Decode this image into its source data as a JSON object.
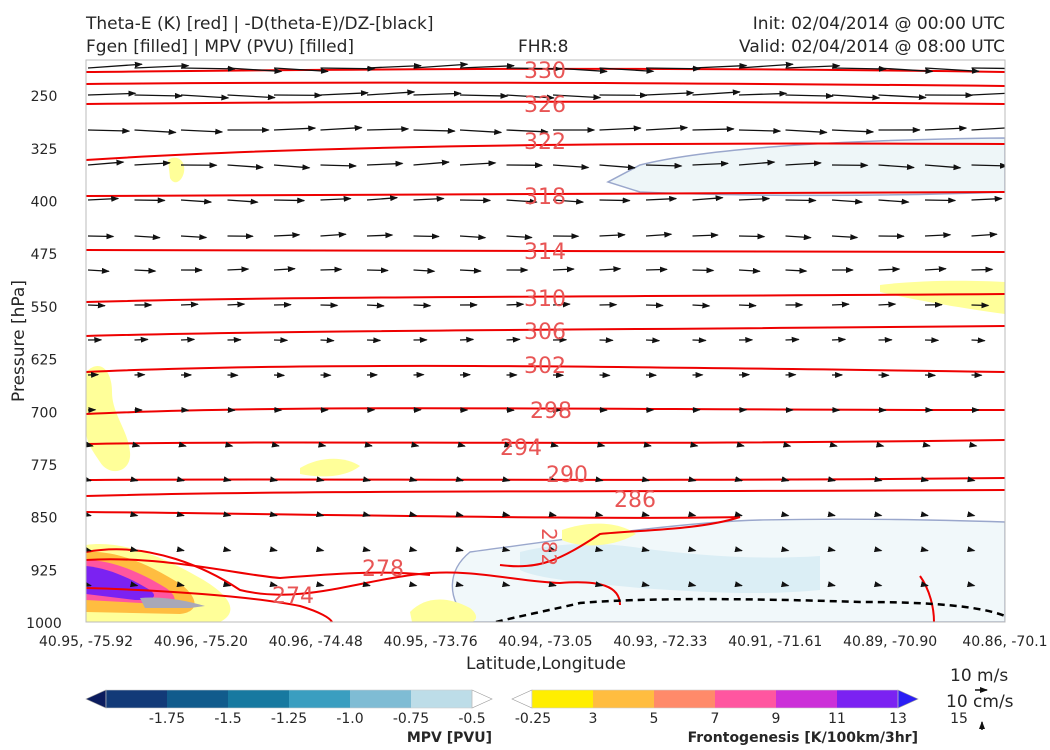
{
  "header": {
    "title_line1": "Theta-E (K) [red] | -D(theta-E)/DZ-[black]",
    "title_line2": "Fgen [filled] | MPV (PVU) [filled]",
    "fhr": "FHR:8",
    "init": "Init: 02/04/2014 @ 00:00 UTC",
    "valid": "Valid: 02/04/2014 @ 08:00 UTC"
  },
  "chart_data": {
    "type": "cross-section contour",
    "xlabel": "Latitude,Longitude",
    "ylabel": "Pressure [hPa]",
    "y_axis": {
      "ylim": [
        1000,
        200
      ],
      "ticks": [
        250,
        325,
        400,
        475,
        550,
        625,
        700,
        775,
        850,
        925,
        1000
      ]
    },
    "x_axis": {
      "ticks": [
        "40.95, -75.92",
        "40.96, -75.20",
        "40.96, -74.48",
        "40.95, -73.76",
        "40.94, -73.05",
        "40.93, -72.33",
        "40.91, -71.61",
        "40.89, -70.90",
        "40.86, -70.1"
      ]
    },
    "series": [
      {
        "name": "Theta-E (K)",
        "color": "#ee0000",
        "contour_labels": [
          "330",
          "326",
          "322",
          "318",
          "314",
          "310",
          "306",
          "302",
          "298",
          "294",
          "290",
          "286",
          "282",
          "278",
          "274"
        ]
      },
      {
        "name": "-D(theta-E)/DZ",
        "color": "#000000"
      },
      {
        "name": "Fgen",
        "style": "filled"
      },
      {
        "name": "MPV (PVU)",
        "style": "filled"
      }
    ],
    "wind_reference": {
      "horizontal": "10 m/s",
      "vertical": "10 cm/s"
    },
    "colorbars": [
      {
        "label": "MPV [PVU]",
        "ticks": [
          "-1.75",
          "-1.5",
          "-1.25",
          "-1.0",
          "-0.75",
          "-0.5",
          "-0.25"
        ],
        "colors": [
          "#0b1c5e",
          "#123a78",
          "#115b8c",
          "#1779a0",
          "#3a9ec0",
          "#7fbcd4",
          "#bddde8",
          "#ffffff"
        ]
      },
      {
        "label": "Frontogenesis [K/100km/3hr]",
        "ticks": [
          "3",
          "5",
          "7",
          "9",
          "11",
          "13",
          "15"
        ],
        "colors": [
          "#ffffff",
          "#ffee00",
          "#ffbd40",
          "#ff8a6a",
          "#ff56a0",
          "#cc30d8",
          "#7b22f2",
          "#2b1ef5"
        ]
      }
    ]
  }
}
